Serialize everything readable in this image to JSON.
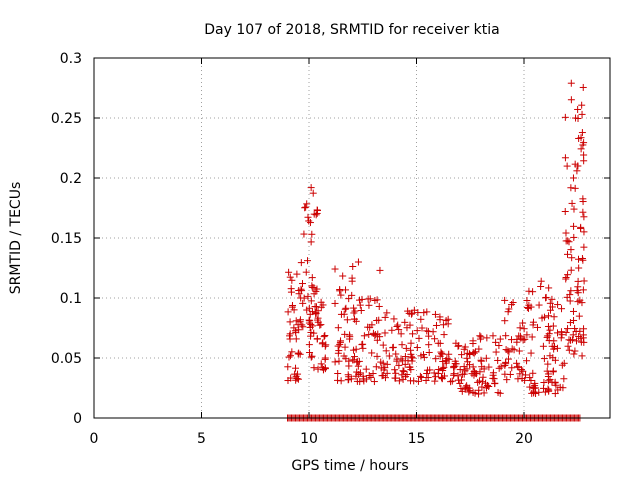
{
  "chart_data": {
    "type": "scatter",
    "title": "Day 107 of 2018, SRMTID for receiver ktia",
    "xlabel": "GPS time / hours",
    "ylabel": "SRMTID / TECUs",
    "xlim": [
      0,
      24
    ],
    "ylim": [
      0,
      0.3
    ],
    "xticks": [
      0,
      5,
      10,
      15,
      20
    ],
    "yticks": [
      0,
      0.05,
      0.1,
      0.15,
      0.2,
      0.25,
      0.3
    ],
    "xtick_labels": [
      "0",
      "5",
      "10",
      "15",
      "20"
    ],
    "ytick_labels": [
      "0",
      "0.05",
      "0.1",
      "0.15",
      "0.2",
      "0.25",
      "0.3"
    ],
    "grid": true,
    "marker": "+",
    "marker_color": "#cc0000",
    "series": [
      {
        "name": "SRMTID",
        "clusters": [
          {
            "x_range": [
              9.0,
              9.6
            ],
            "y_range": [
              0.03,
              0.125
            ],
            "count": 40
          },
          {
            "x_range": [
              9.6,
              10.4
            ],
            "y_range": [
              0.07,
              0.19
            ],
            "count": 40
          },
          {
            "x_range": [
              10.0,
              10.8
            ],
            "y_range": [
              0.04,
              0.11
            ],
            "count": 45
          },
          {
            "x_range": [
              11.2,
              12.2
            ],
            "y_range": [
              0.03,
              0.13
            ],
            "count": 55
          },
          {
            "x_range": [
              12.2,
              13.4
            ],
            "y_range": [
              0.03,
              0.1
            ],
            "count": 50
          },
          {
            "x_range": [
              13.4,
              14.6
            ],
            "y_range": [
              0.03,
              0.09
            ],
            "count": 45
          },
          {
            "x_range": [
              14.6,
              16.0
            ],
            "y_range": [
              0.03,
              0.09
            ],
            "count": 50
          },
          {
            "x_range": [
              16.0,
              17.0
            ],
            "y_range": [
              0.03,
              0.085
            ],
            "count": 45
          },
          {
            "x_range": [
              17.0,
              17.8
            ],
            "y_range": [
              0.02,
              0.07
            ],
            "count": 40
          },
          {
            "x_range": [
              17.8,
              19.0
            ],
            "y_range": [
              0.02,
              0.07
            ],
            "count": 40
          },
          {
            "x_range": [
              19.0,
              20.2
            ],
            "y_range": [
              0.03,
              0.1
            ],
            "count": 45
          },
          {
            "x_range": [
              20.2,
              21.2
            ],
            "y_range": [
              0.02,
              0.115
            ],
            "count": 50
          },
          {
            "x_range": [
              21.2,
              21.9
            ],
            "y_range": [
              0.02,
              0.1
            ],
            "count": 35
          },
          {
            "x_range": [
              21.9,
              22.8
            ],
            "y_range": [
              0.05,
              0.28
            ],
            "count": 90
          }
        ],
        "zero_band": {
          "x_range": [
            9.0,
            22.6
          ],
          "y": 0.0,
          "count": 220
        },
        "highlights": [
          {
            "x": 22.2,
            "y": 0.279
          },
          {
            "x": 10.1,
            "y": 0.192
          },
          {
            "x": 22.7,
            "y": 0.253
          },
          {
            "x": 22.5,
            "y": 0.21
          },
          {
            "x": 12.3,
            "y": 0.13
          },
          {
            "x": 13.3,
            "y": 0.123
          },
          {
            "x": 19.1,
            "y": 0.098
          },
          {
            "x": 20.8,
            "y": 0.114
          }
        ]
      }
    ]
  }
}
